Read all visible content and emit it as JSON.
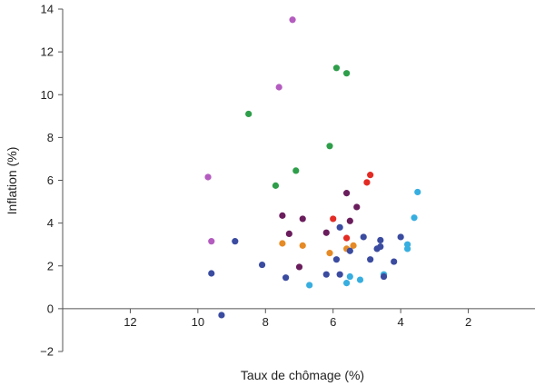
{
  "chart_data": {
    "type": "scatter",
    "xlabel": "Taux de chômage (%)",
    "ylabel": "Inflation (%)",
    "x_reversed": true,
    "xlim": [
      14,
      0
    ],
    "ylim": [
      -2,
      14
    ],
    "x_ticks": [
      12,
      10,
      8,
      6,
      4,
      2
    ],
    "x_tick_labels": [
      "12",
      "10",
      "8",
      "6",
      "4",
      "2"
    ],
    "y_ticks": [
      -2,
      0,
      2,
      4,
      6,
      8,
      10,
      12,
      14
    ],
    "y_tick_labels": [
      "−2",
      "0",
      "2",
      "4",
      "6",
      "8",
      "10",
      "12",
      "14"
    ],
    "grid": false,
    "series": [
      {
        "color": "#b45cbf",
        "points": [
          [
            7.2,
            13.5
          ],
          [
            7.6,
            10.35
          ],
          [
            9.7,
            6.15
          ],
          [
            9.6,
            3.15
          ]
        ]
      },
      {
        "color": "#2e9e4a",
        "points": [
          [
            5.9,
            11.25
          ],
          [
            5.6,
            11.0
          ],
          [
            8.5,
            9.1
          ],
          [
            6.1,
            7.6
          ],
          [
            7.1,
            6.45
          ],
          [
            7.7,
            5.75
          ]
        ]
      },
      {
        "color": "#e32b24",
        "points": [
          [
            4.9,
            6.25
          ],
          [
            5.0,
            5.9
          ],
          [
            6.0,
            4.2
          ],
          [
            5.6,
            3.3
          ]
        ]
      },
      {
        "color": "#6a1d5c",
        "points": [
          [
            5.6,
            5.4
          ],
          [
            5.3,
            4.75
          ],
          [
            7.5,
            4.35
          ],
          [
            6.9,
            4.2
          ],
          [
            5.5,
            4.1
          ],
          [
            7.3,
            3.5
          ],
          [
            6.2,
            3.55
          ],
          [
            7.0,
            1.95
          ]
        ]
      },
      {
        "color": "#37aee0",
        "points": [
          [
            3.5,
            5.45
          ],
          [
            3.6,
            4.25
          ],
          [
            3.8,
            3.0
          ],
          [
            3.8,
            2.8
          ],
          [
            4.5,
            1.6
          ],
          [
            5.5,
            1.5
          ],
          [
            5.2,
            1.35
          ],
          [
            5.6,
            1.2
          ],
          [
            6.7,
            1.1
          ]
        ]
      },
      {
        "color": "#e58a25",
        "points": [
          [
            7.5,
            3.05
          ],
          [
            6.9,
            2.95
          ],
          [
            5.4,
            2.95
          ],
          [
            5.6,
            2.8
          ],
          [
            6.1,
            2.6
          ]
        ]
      },
      {
        "color": "#3a4ba0",
        "points": [
          [
            8.9,
            3.15
          ],
          [
            5.8,
            3.8
          ],
          [
            5.1,
            3.35
          ],
          [
            4.0,
            3.35
          ],
          [
            4.6,
            3.2
          ],
          [
            4.7,
            2.8
          ],
          [
            4.6,
            2.9
          ],
          [
            5.5,
            2.7
          ],
          [
            4.9,
            2.3
          ],
          [
            5.9,
            2.3
          ],
          [
            8.1,
            2.05
          ],
          [
            4.2,
            2.2
          ],
          [
            9.6,
            1.65
          ],
          [
            6.2,
            1.6
          ],
          [
            5.8,
            1.6
          ],
          [
            4.5,
            1.5
          ],
          [
            7.4,
            1.45
          ],
          [
            9.3,
            -0.3
          ]
        ]
      }
    ]
  }
}
